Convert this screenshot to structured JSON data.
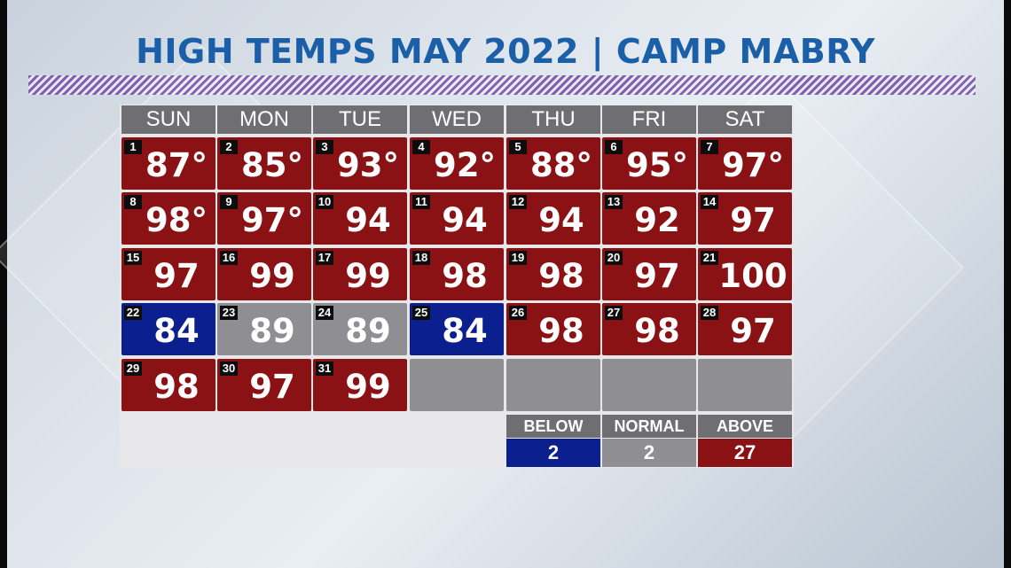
{
  "title": "HIGH TEMPS MAY 2022 | CAMP MABRY",
  "colors": {
    "above": "#8a1214",
    "normal": "#8f8e92",
    "below": "#0c1f8e",
    "title": "#1a5fa8"
  },
  "weekdays": [
    "SUN",
    "MON",
    "TUE",
    "WED",
    "THU",
    "FRI",
    "SAT"
  ],
  "days": [
    {
      "day": "1",
      "temp": "87°",
      "status": "above"
    },
    {
      "day": "2",
      "temp": "85°",
      "status": "above"
    },
    {
      "day": "3",
      "temp": "93°",
      "status": "above"
    },
    {
      "day": "4",
      "temp": "92°",
      "status": "above"
    },
    {
      "day": "5",
      "temp": "88°",
      "status": "above"
    },
    {
      "day": "6",
      "temp": "95°",
      "status": "above"
    },
    {
      "day": "7",
      "temp": "97°",
      "status": "above"
    },
    {
      "day": "8",
      "temp": "98°",
      "status": "above"
    },
    {
      "day": "9",
      "temp": "97°",
      "status": "above"
    },
    {
      "day": "10",
      "temp": "94",
      "status": "above"
    },
    {
      "day": "11",
      "temp": "94",
      "status": "above"
    },
    {
      "day": "12",
      "temp": "94",
      "status": "above"
    },
    {
      "day": "13",
      "temp": "92",
      "status": "above"
    },
    {
      "day": "14",
      "temp": "97",
      "status": "above"
    },
    {
      "day": "15",
      "temp": "97",
      "status": "above"
    },
    {
      "day": "16",
      "temp": "99",
      "status": "above"
    },
    {
      "day": "17",
      "temp": "99",
      "status": "above"
    },
    {
      "day": "18",
      "temp": "98",
      "status": "above"
    },
    {
      "day": "19",
      "temp": "98",
      "status": "above"
    },
    {
      "day": "20",
      "temp": "97",
      "status": "above"
    },
    {
      "day": "21",
      "temp": "100",
      "status": "above"
    },
    {
      "day": "22",
      "temp": "84",
      "status": "below"
    },
    {
      "day": "23",
      "temp": "89",
      "status": "normal"
    },
    {
      "day": "24",
      "temp": "89",
      "status": "normal"
    },
    {
      "day": "25",
      "temp": "84",
      "status": "below"
    },
    {
      "day": "26",
      "temp": "98",
      "status": "above"
    },
    {
      "day": "27",
      "temp": "98",
      "status": "above"
    },
    {
      "day": "28",
      "temp": "97",
      "status": "above"
    },
    {
      "day": "29",
      "temp": "98",
      "status": "above"
    },
    {
      "day": "30",
      "temp": "97",
      "status": "above"
    },
    {
      "day": "31",
      "temp": "99",
      "status": "above"
    }
  ],
  "legend": [
    {
      "label": "BELOW",
      "count": "2",
      "status": "below"
    },
    {
      "label": "NORMAL",
      "count": "2",
      "status": "normal"
    },
    {
      "label": "ABOVE",
      "count": "27",
      "status": "above"
    }
  ]
}
